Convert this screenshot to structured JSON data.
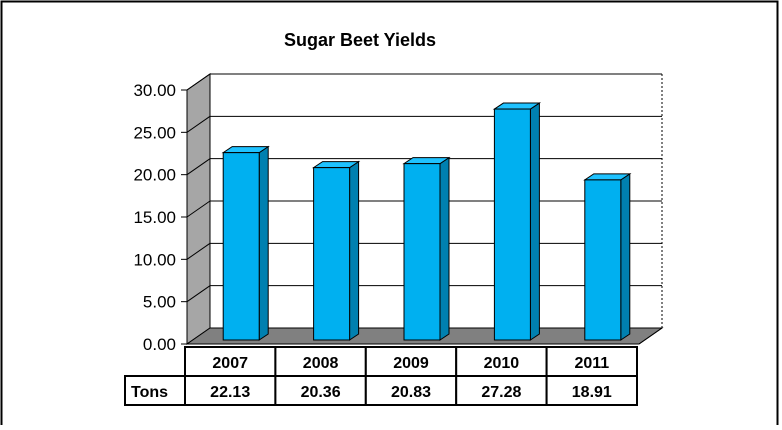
{
  "chart_data": {
    "type": "bar",
    "title": "Sugar Beet Yields",
    "categories": [
      "2007",
      "2008",
      "2009",
      "2010",
      "2011"
    ],
    "series": [
      {
        "name": "Tons",
        "values": [
          22.13,
          20.36,
          20.83,
          27.28,
          18.91
        ]
      }
    ],
    "value_labels": [
      "22.13",
      "20.36",
      "20.83",
      "27.28",
      "18.91"
    ],
    "ylim": [
      0,
      30
    ],
    "yticks": [
      "0.00",
      "5.00",
      "10.00",
      "15.00",
      "20.00",
      "25.00",
      "30.00"
    ],
    "grid": true,
    "legend": "data-table",
    "style": "3d-column",
    "colors": {
      "bar_front": "#00B0F0",
      "bar_top": "#1FC2FF",
      "bar_side": "#0080B0",
      "floor": "#808080",
      "wall_side": "#A6A6A6"
    }
  }
}
